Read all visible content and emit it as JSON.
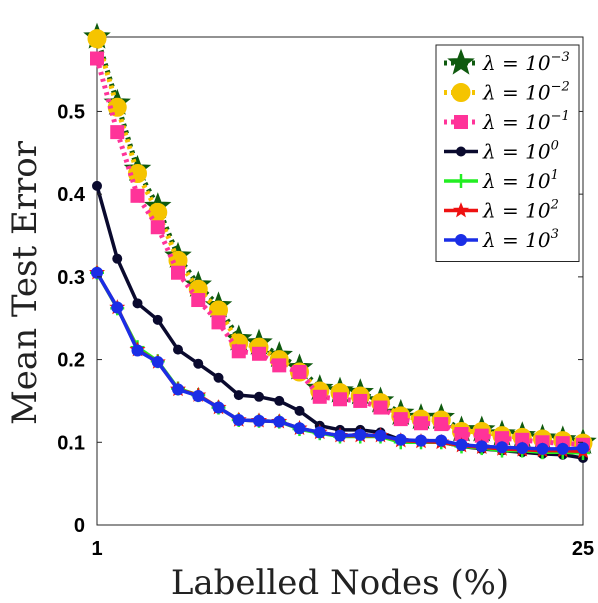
{
  "chart_data": {
    "type": "line",
    "xlabel": "Labelled Nodes (%)",
    "ylabel": "Mean Test Error",
    "xlim": [
      1,
      25
    ],
    "ylim": [
      0,
      0.59
    ],
    "x_ticks": [
      "1",
      "25"
    ],
    "y_ticks": [
      "0",
      "0.1",
      "0.2",
      "0.3",
      "0.4",
      "0.5"
    ],
    "grid": false,
    "legend_position": "top-right",
    "x": [
      1,
      2,
      3,
      4,
      5,
      6,
      7,
      8,
      9,
      10,
      11,
      12,
      13,
      14,
      15,
      16,
      17,
      18,
      19,
      20,
      21,
      22,
      23,
      24,
      25
    ],
    "series": [
      {
        "name": "λ = 10^-3",
        "legend_base": "λ = 10",
        "legend_exp": "−3",
        "color": "#0f5a0f",
        "marker": "star",
        "style": "dotted",
        "values": [
          0.59,
          0.51,
          0.43,
          0.385,
          0.325,
          0.29,
          0.265,
          0.225,
          0.22,
          0.205,
          0.19,
          0.165,
          0.162,
          0.16,
          0.15,
          0.135,
          0.13,
          0.13,
          0.115,
          0.115,
          0.11,
          0.108,
          0.105,
          0.103,
          0.1
        ]
      },
      {
        "name": "λ = 10^-2",
        "legend_base": "λ = 10",
        "legend_exp": "−2",
        "color": "#f5c400",
        "marker": "circle",
        "style": "dotted",
        "values": [
          0.588,
          0.505,
          0.425,
          0.378,
          0.32,
          0.285,
          0.26,
          0.22,
          0.215,
          0.2,
          0.185,
          0.162,
          0.16,
          0.156,
          0.148,
          0.132,
          0.128,
          0.127,
          0.113,
          0.113,
          0.108,
          0.106,
          0.104,
          0.102,
          0.099
        ]
      },
      {
        "name": "λ = 10^-1",
        "legend_base": "λ = 10",
        "legend_exp": "−1",
        "color": "#ff3399",
        "marker": "square",
        "style": "dotted",
        "values": [
          0.564,
          0.475,
          0.398,
          0.36,
          0.305,
          0.272,
          0.245,
          0.21,
          0.207,
          0.193,
          0.185,
          0.155,
          0.152,
          0.15,
          0.142,
          0.128,
          0.123,
          0.122,
          0.11,
          0.108,
          0.105,
          0.103,
          0.1,
          0.099,
          0.097
        ]
      },
      {
        "name": "λ = 10^0",
        "legend_base": "λ = 10",
        "legend_exp": "0",
        "color": "#0a0a2e",
        "marker": "dot",
        "style": "solid",
        "values": [
          0.41,
          0.322,
          0.268,
          0.248,
          0.212,
          0.195,
          0.178,
          0.157,
          0.155,
          0.15,
          0.138,
          0.12,
          0.115,
          0.115,
          0.112,
          0.103,
          0.101,
          0.1,
          0.095,
          0.092,
          0.09,
          0.088,
          0.086,
          0.085,
          0.081
        ]
      },
      {
        "name": "λ = 10^1",
        "legend_base": "λ = 10",
        "legend_exp": "1",
        "color": "#22ee22",
        "marker": "plus",
        "style": "solid",
        "values": [
          0.305,
          0.262,
          0.215,
          0.198,
          0.165,
          0.157,
          0.142,
          0.127,
          0.126,
          0.125,
          0.116,
          0.111,
          0.107,
          0.107,
          0.107,
          0.1,
          0.1,
          0.1,
          0.095,
          0.093,
          0.09,
          0.09,
          0.088,
          0.088,
          0.087
        ]
      },
      {
        "name": "λ = 10^2",
        "legend_base": "λ = 10",
        "legend_exp": "2",
        "color": "#ee1111",
        "marker": "small-star",
        "style": "solid",
        "values": [
          0.305,
          0.263,
          0.212,
          0.197,
          0.164,
          0.157,
          0.142,
          0.127,
          0.126,
          0.125,
          0.117,
          0.112,
          0.108,
          0.108,
          0.108,
          0.102,
          0.101,
          0.1,
          0.096,
          0.094,
          0.092,
          0.091,
          0.09,
          0.09,
          0.089
        ]
      },
      {
        "name": "λ = 10^3",
        "legend_base": "λ = 10",
        "legend_exp": "3",
        "color": "#1a2ee6",
        "marker": "circle",
        "style": "solid",
        "values": [
          0.305,
          0.263,
          0.211,
          0.197,
          0.164,
          0.156,
          0.142,
          0.127,
          0.126,
          0.125,
          0.117,
          0.112,
          0.108,
          0.109,
          0.108,
          0.103,
          0.102,
          0.102,
          0.097,
          0.095,
          0.094,
          0.093,
          0.092,
          0.092,
          0.093
        ]
      }
    ]
  }
}
